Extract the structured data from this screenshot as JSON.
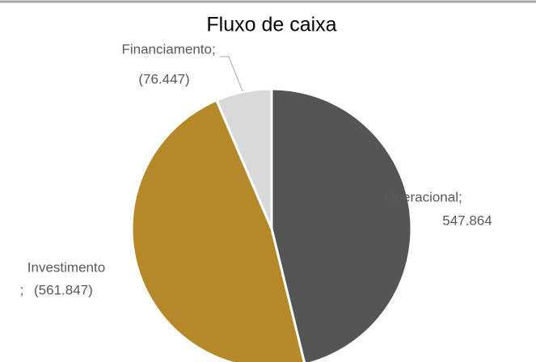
{
  "chart_data": {
    "type": "pie",
    "title": "Fluxo de caixa",
    "categories": [
      "Operacional",
      "Investimento",
      "Financiamento"
    ],
    "values": [
      547864,
      -561847,
      -76447
    ],
    "value_labels": [
      "547.864",
      "(561.847)",
      "(76.447)"
    ],
    "separator": ";",
    "colors": [
      "#555555",
      "#b5892a",
      "#d9d9d9"
    ]
  }
}
